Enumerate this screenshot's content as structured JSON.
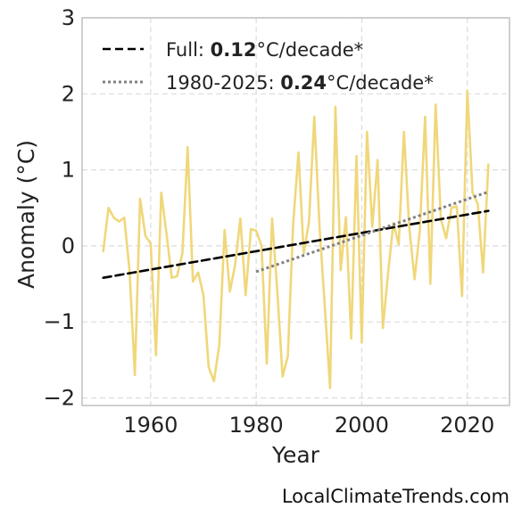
{
  "chart_data": {
    "type": "line",
    "xlabel": "Year",
    "ylabel": "Anomaly (°C)",
    "xlim": [
      1947,
      2028
    ],
    "ylim": [
      -2.1,
      3.0
    ],
    "x_ticks": [
      1960,
      1980,
      2000,
      2020
    ],
    "y_ticks": [
      -2,
      -1,
      0,
      1,
      2,
      3
    ],
    "y_tick_labels": [
      "−2",
      "−1",
      "0",
      "1",
      "2",
      "3"
    ],
    "grid": true,
    "legend_position": "top-left",
    "series": [
      {
        "kind": "anomaly",
        "color": "#f0d77a",
        "x": [
          1951,
          1952,
          1953,
          1954,
          1955,
          1956,
          1957,
          1958,
          1959,
          1960,
          1961,
          1962,
          1963,
          1964,
          1965,
          1966,
          1967,
          1968,
          1969,
          1970,
          1971,
          1972,
          1973,
          1974,
          1975,
          1976,
          1977,
          1978,
          1979,
          1980,
          1981,
          1982,
          1983,
          1984,
          1985,
          1986,
          1987,
          1988,
          1989,
          1990,
          1991,
          1992,
          1993,
          1994,
          1995,
          1996,
          1997,
          1998,
          1999,
          2000,
          2001,
          2002,
          2003,
          2004,
          2005,
          2006,
          2007,
          2008,
          2009,
          2010,
          2011,
          2012,
          2013,
          2014,
          2015,
          2016,
          2017,
          2018,
          2019,
          2020,
          2021,
          2022,
          2023,
          2024
        ],
        "y": [
          -0.07,
          0.5,
          0.37,
          0.32,
          0.37,
          -0.33,
          -1.7,
          0.62,
          0.13,
          0.03,
          -1.44,
          0.7,
          0.16,
          -0.42,
          -0.4,
          -0.1,
          1.3,
          -0.47,
          -0.35,
          -0.65,
          -1.6,
          -1.78,
          -1.3,
          0.21,
          -0.6,
          -0.25,
          0.36,
          -0.65,
          0.22,
          0.2,
          0.0,
          -1.55,
          0.36,
          -0.6,
          -1.72,
          -1.45,
          0.28,
          1.23,
          -0.1,
          0.32,
          1.7,
          0.25,
          -0.8,
          -1.87,
          1.83,
          -0.32,
          0.38,
          -1.22,
          1.18,
          -1.27,
          1.5,
          0.25,
          1.13,
          -1.08,
          -0.35,
          0.3,
          0.02,
          1.5,
          0.25,
          -0.44,
          0.2,
          1.7,
          -0.5,
          1.86,
          0.35,
          0.1,
          0.5,
          0.52,
          -0.66,
          2.04,
          0.7,
          0.55,
          -0.35,
          1.07
        ]
      },
      {
        "kind": "full-trend",
        "style": "dashed",
        "color": "#000000",
        "x": [
          1951,
          2024
        ],
        "y": [
          -0.42,
          0.46
        ]
      },
      {
        "kind": "recent-trend",
        "style": "dotted",
        "color": "#808080",
        "x": [
          1980,
          2024
        ],
        "y": [
          -0.34,
          0.71
        ]
      }
    ],
    "legend": [
      {
        "prefix": "Full: ",
        "value": "0.12",
        "suffix": "°C/decade*",
        "style": "dashed",
        "color": "#000000"
      },
      {
        "prefix": "1980-2025: ",
        "value": "0.24",
        "suffix": "°C/decade*",
        "style": "dotted",
        "color": "#808080"
      }
    ]
  },
  "source_label": "LocalClimateTrends.com"
}
